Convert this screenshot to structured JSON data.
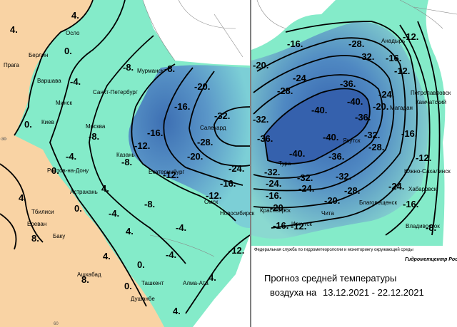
{
  "map": {
    "contour_labels_left": [
      "4.",
      "4.",
      "0.",
      "-8.",
      "-8.",
      "-4.",
      "-20.",
      "-16.",
      "-32.",
      "-16.",
      "-28.",
      "-12.",
      "-20.",
      "-8.",
      "0.",
      "-4.",
      "0.",
      "-8.",
      "4.",
      "4.",
      "-12.",
      "-24.",
      "-16.",
      "-12.",
      "-8.",
      "0.",
      "-4.",
      "4.",
      "-4.",
      "-12.",
      "8.",
      "4.",
      "-4.",
      "8.",
      "0.",
      "4.",
      "0.",
      "4."
    ],
    "contour_labels_right": [
      "-12.",
      "-16.",
      "-28.",
      "-32.",
      "-20.",
      "-24.",
      "-28.",
      "-16.",
      "-12.",
      "-36.",
      "-24.",
      "-20.",
      "-40.",
      "-40.",
      "-32.",
      "-36.",
      "-32.",
      "-36.",
      "-40.",
      "-28.",
      "-16.",
      "-12.",
      "-40.",
      "-36.",
      "-32.",
      "-32.",
      "-32.",
      "-24.",
      "-28.",
      "-24.",
      "-16.",
      "-24.",
      "-20.",
      "-20.",
      "-16.",
      "-16.",
      "-12.",
      "-8."
    ],
    "cities_left": [
      "Осло",
      "Берлин",
      "Прага",
      "Варшава",
      "Минск",
      "Киев",
      "Москва",
      "Санкт-Петербург",
      "Мурманск",
      "Казань",
      "Ростов-на-Дону",
      "Астрахань",
      "Тбилиси",
      "Ереван",
      "Баку",
      "Ашхабад",
      "Ташкент",
      "Душанбе",
      "Алма-Ата",
      "Екатеринбург",
      "Омск",
      "Новосибирск",
      "Салехард"
    ],
    "cities_right": [
      "Тура",
      "Якутск",
      "Анадырь",
      "Петропавловск",
      "Камчатский",
      "Магадан",
      "Южно-Сахалинск",
      "Хабаровск",
      "Благовещенск",
      "Чита",
      "Иркутск",
      "Красноярск",
      "Владивосток"
    ],
    "graticule": [
      "30",
      "60"
    ],
    "footer": {
      "agency": "Федеральная служба по гидрометеорологии и мониторингу окружающей среды",
      "center": "Гидрометцентр России",
      "title_line1": "Прогноз средней температуры",
      "title_line2": "воздуха на",
      "period": "13.12.2021 - 22.12.2021"
    }
  }
}
